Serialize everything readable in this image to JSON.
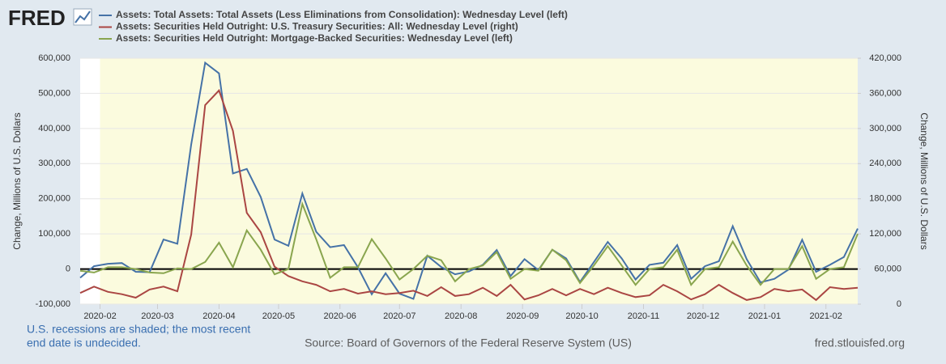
{
  "chart_data": {
    "type": "line",
    "logo": "FRED",
    "legend": "top-left",
    "series": [
      {
        "name": "Assets: Total Assets: Total Assets (Less Eliminations from Consolidation): Wednesday Level (left)",
        "color": "#4572a7",
        "axis": "y",
        "values": [
          -25000,
          8000,
          15000,
          17000,
          -8000,
          -9000,
          84000,
          72000,
          355000,
          587000,
          557000,
          272000,
          285000,
          205000,
          84000,
          66000,
          215000,
          106000,
          62000,
          68000,
          5000,
          -72000,
          -12000,
          -70000,
          -85000,
          38000,
          6000,
          -15000,
          -7000,
          12000,
          54000,
          -20000,
          28000,
          -3000,
          55000,
          30000,
          -37000,
          20000,
          77000,
          30000,
          -30000,
          12000,
          18000,
          68000,
          -28000,
          8000,
          22000,
          122000,
          28000,
          -38000,
          -28000,
          -2000,
          83000,
          -8000,
          12000,
          34000,
          115000
        ]
      },
      {
        "name": "Assets: Securities Held Outright: U.S. Treasury Securities: All: Wednesday Level (right)",
        "color": "#aa4643",
        "axis": "y2",
        "values": [
          19000,
          30000,
          21000,
          17000,
          11000,
          25000,
          30000,
          22000,
          119000,
          340000,
          365000,
          296000,
          156000,
          123000,
          64000,
          48000,
          39000,
          33000,
          22000,
          26000,
          18000,
          22000,
          17000,
          19000,
          23000,
          14000,
          29000,
          14000,
          17000,
          28000,
          14000,
          33000,
          8000,
          15000,
          26000,
          15000,
          26000,
          17000,
          28000,
          19000,
          12000,
          15000,
          33000,
          22000,
          8000,
          17000,
          33000,
          19000,
          7000,
          12000,
          26000,
          22000,
          25000,
          7000,
          29000,
          26000,
          28000
        ]
      },
      {
        "name": "Assets: Securities Held Outright: Mortgage-Backed Securities: Wednesday Level (left)",
        "color": "#89a54e",
        "axis": "y",
        "values": [
          -5000,
          -10000,
          5000,
          5000,
          0,
          -10000,
          -12000,
          2000,
          0,
          20000,
          75000,
          5000,
          110000,
          55000,
          -15000,
          0,
          185000,
          85000,
          -25000,
          5000,
          5000,
          85000,
          30000,
          -30000,
          0,
          38000,
          25000,
          -35000,
          0,
          10000,
          48000,
          -28000,
          0,
          -5000,
          55000,
          25000,
          -40000,
          10000,
          65000,
          10000,
          -45000,
          0,
          5000,
          55000,
          -45000,
          0,
          5000,
          78000,
          10000,
          -45000,
          0,
          0,
          65000,
          -28000,
          0,
          5000,
          100000
        ]
      }
    ],
    "xlim": [
      0,
      56
    ],
    "xticks": [
      {
        "value": 1.43,
        "label": "2020-02"
      },
      {
        "value": 5.57,
        "label": "2020-03"
      },
      {
        "value": 10,
        "label": "2020-04"
      },
      {
        "value": 14.29,
        "label": "2020-05"
      },
      {
        "value": 18.71,
        "label": "2020-06"
      },
      {
        "value": 23,
        "label": "2020-07"
      },
      {
        "value": 27.43,
        "label": "2020-08"
      },
      {
        "value": 31.86,
        "label": "2020-09"
      },
      {
        "value": 36.14,
        "label": "2020-10"
      },
      {
        "value": 40.57,
        "label": "2020-11"
      },
      {
        "value": 44.86,
        "label": "2020-12"
      },
      {
        "value": 49.29,
        "label": "2021-01"
      },
      {
        "value": 53.71,
        "label": "2021-02"
      }
    ],
    "recession_shading": {
      "start": 1.43
    },
    "ylim": [
      -100000,
      600000
    ],
    "yticks": [
      {
        "value": -100000,
        "label": "-100,000"
      },
      0,
      {
        "value": 100000,
        "label": "100,000"
      },
      {
        "value": 200000,
        "label": "200,000"
      },
      {
        "value": 300000,
        "label": "300,000"
      },
      {
        "value": 400000,
        "label": "400,000"
      },
      {
        "value": 500000,
        "label": "500,000"
      },
      {
        "value": 600000,
        "label": "600,000"
      }
    ],
    "y2lim": [
      0,
      420000
    ],
    "y2ticks": [
      0,
      {
        "value": 60000,
        "label": "60,000"
      },
      {
        "value": 120000,
        "label": "120,000"
      },
      {
        "value": 180000,
        "label": "180,000"
      },
      {
        "value": 240000,
        "label": "240,000"
      },
      {
        "value": 300000,
        "label": "300,000"
      },
      {
        "value": 360000,
        "label": "360,000"
      },
      {
        "value": 420000,
        "label": "420,000"
      }
    ],
    "ylabel": "Change, Millions of U.S. Dollars",
    "y2label": "Change, Millions of U.S. Dollars",
    "grid": true,
    "note": [
      "U.S. recessions are shaded; the most recent",
      "end date is undecided."
    ],
    "source": "Source: Board of Governors of the Federal Reserve System (US)",
    "site": "fred.stlouisfed.org"
  }
}
